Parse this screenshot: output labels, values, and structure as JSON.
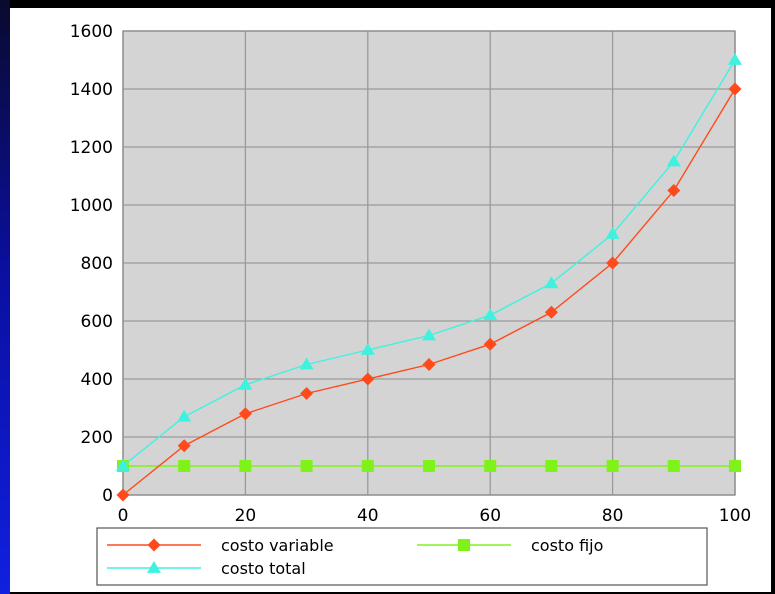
{
  "chart_data": {
    "type": "line",
    "x": [
      0,
      10,
      20,
      30,
      40,
      50,
      60,
      70,
      80,
      90,
      100
    ],
    "series": [
      {
        "name": "costo variable",
        "values": [
          0,
          170,
          280,
          350,
          400,
          450,
          520,
          630,
          800,
          1050,
          1400
        ],
        "color": "#ff4a1c",
        "marker": "diamond"
      },
      {
        "name": "costo fijo",
        "values": [
          100,
          100,
          100,
          100,
          100,
          100,
          100,
          100,
          100,
          100,
          100
        ],
        "color": "#7ff21a",
        "marker": "square"
      },
      {
        "name": "costo total",
        "values": [
          100,
          270,
          380,
          450,
          500,
          550,
          620,
          730,
          900,
          1150,
          1500
        ],
        "color": "#3ff2e0",
        "marker": "triangle"
      }
    ],
    "xticks": [
      "0",
      "20",
      "40",
      "60",
      "80",
      "100"
    ],
    "yticks": [
      "0",
      "200",
      "400",
      "600",
      "800",
      "1000",
      "1200",
      "1400",
      "1600"
    ],
    "xlim": [
      0,
      100
    ],
    "ylim": [
      0,
      1600
    ],
    "grid": true,
    "legend_position": "bottom",
    "plot_background": "#d4d4d4"
  }
}
